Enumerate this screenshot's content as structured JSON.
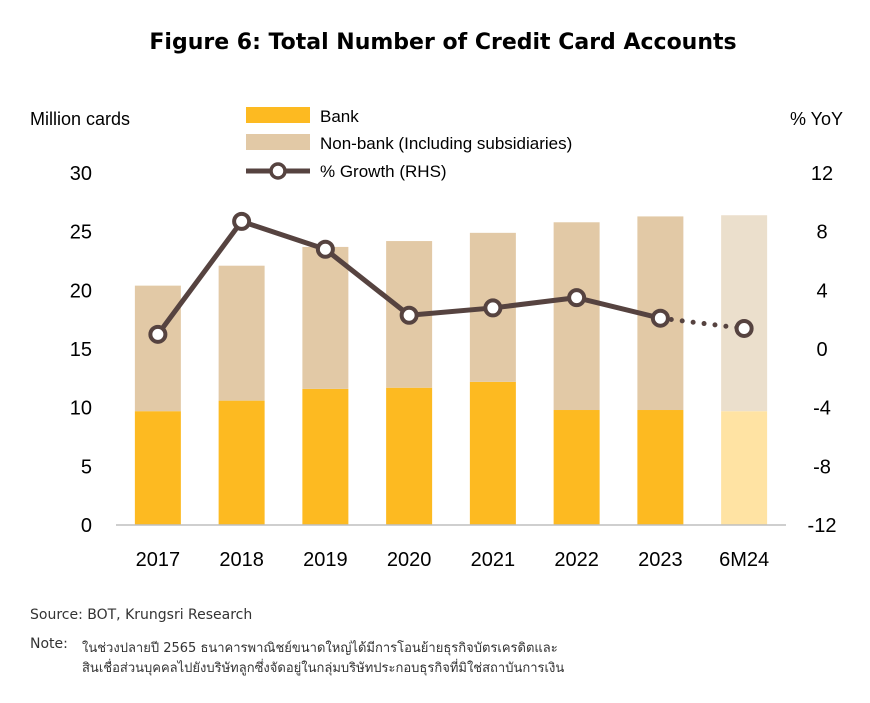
{
  "chart_data": {
    "type": "bar",
    "title": "Figure  6: Total Number of Credit Card Accounts",
    "ylabel": "Million cards",
    "y2label": "% YoY",
    "categories": [
      "2017",
      "2018",
      "2019",
      "2020",
      "2021",
      "2022",
      "2023",
      "6M24"
    ],
    "ylim": [
      0,
      30
    ],
    "y2lim": [
      -12,
      12
    ],
    "yticks": [
      "0",
      "5",
      "10",
      "15",
      "20",
      "25",
      "30"
    ],
    "y2ticks": [
      "-12",
      "-8",
      "-4",
      "0",
      "4",
      "8",
      "12"
    ],
    "stacked": true,
    "series": [
      {
        "name": "Bank",
        "type": "bar",
        "values": [
          9.7,
          10.6,
          11.6,
          11.7,
          12.2,
          9.8,
          9.8,
          9.7
        ]
      },
      {
        "name": "Non-bank (Including subsidiaries)",
        "type": "bar",
        "values": [
          10.7,
          11.5,
          12.1,
          12.5,
          12.7,
          16.0,
          16.5,
          16.7
        ]
      },
      {
        "name": "% Growth (RHS)",
        "type": "line",
        "axis": "right",
        "values": [
          1.0,
          8.7,
          6.8,
          2.3,
          2.8,
          3.5,
          2.1,
          1.4
        ]
      }
    ],
    "estimate_category": "6M24",
    "colors": {
      "bank": "#FDBA21",
      "nonbank": "#E2C9A6",
      "bank_light": "#FFE3A3",
      "nonbank_light": "#EBDFCC",
      "growth_line": "#564340"
    },
    "legend": "top-center",
    "grid": false
  },
  "footer": {
    "source": "Source: BOT, Krungsri Research",
    "note_label": "Note:",
    "note_line1": "ในช่วงปลายปี 2565 ธนาคารพาณิชย์ขนาดใหญ่ได้มีการโอนย้ายธุรกิจบัตรเครดิตและ",
    "note_line2": "สินเชื่อส่วนบุคคลไปยังบริษัทลูกซึ่งจัดอยู่ในกลุ่มบริษัทประกอบธุรกิจที่มิใช่สถาบันการเงิน"
  }
}
